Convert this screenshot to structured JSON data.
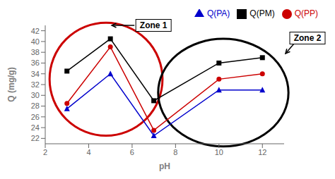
{
  "chart_data": {
    "type": "line",
    "xlabel": "pH",
    "ylabel": "Q (mg/g)",
    "x": [
      3,
      5,
      7,
      10,
      12
    ],
    "series": [
      {
        "name": "Q(PM)",
        "color": "#000000",
        "marker": "square",
        "values": [
          34.5,
          40.5,
          29.0,
          36.0,
          37.0
        ]
      },
      {
        "name": "Q(PP)",
        "color": "#cc0000",
        "marker": "circle",
        "values": [
          28.5,
          39.0,
          23.5,
          33.0,
          34.0
        ]
      },
      {
        "name": "Q(PA)",
        "color": "#0000cc",
        "marker": "triangle",
        "values": [
          27.5,
          34.0,
          22.5,
          31.0,
          31.0
        ]
      }
    ],
    "xlim": [
      2,
      13
    ],
    "ylim": [
      21.0,
      43.0
    ],
    "xticks": [
      2,
      4,
      6,
      8,
      10,
      12
    ],
    "yticks": [
      22,
      24,
      26,
      28,
      30,
      32,
      34,
      36,
      38,
      40,
      42
    ],
    "zones": [
      {
        "label": "Zone 1",
        "center_x": 4.8,
        "center_y": 33.0,
        "rx": 2.6,
        "ry": 10.5,
        "color": "#cc0000",
        "label_x": 5.0,
        "label_y": 43.0
      },
      {
        "label": "Zone 2",
        "center_x": 10.2,
        "center_y": 30.5,
        "rx": 3.0,
        "ry": 10.0,
        "color": "#000000",
        "label_x": 13.0,
        "label_y": 37.5
      }
    ],
    "grid": false,
    "legend": "upper right"
  }
}
